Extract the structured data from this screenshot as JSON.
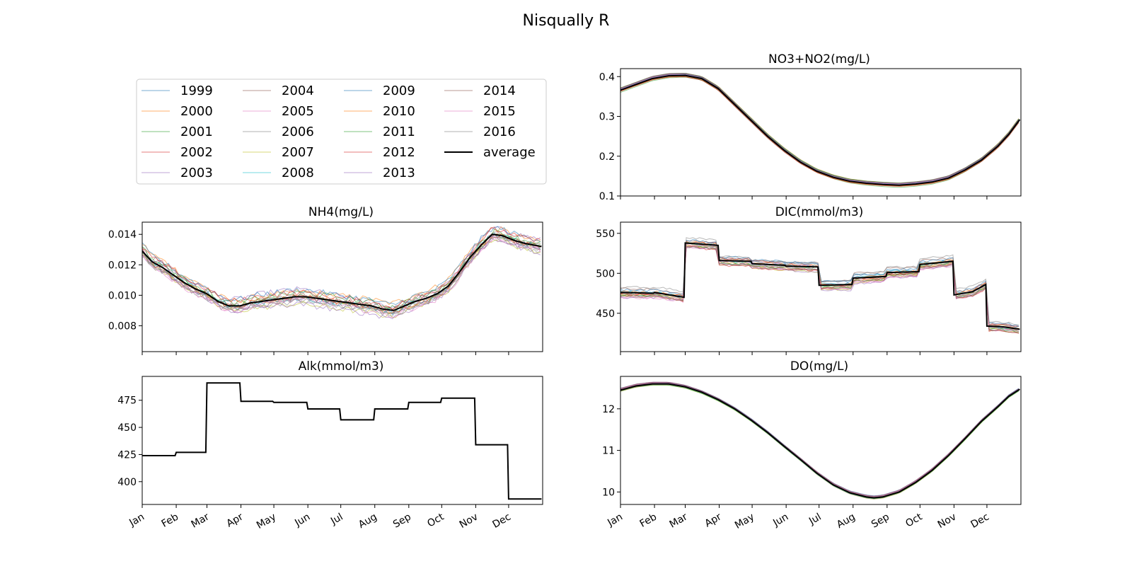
{
  "figure": {
    "title": "Nisqually R"
  },
  "legend": {
    "entries": [
      {
        "label": "1999",
        "color": "#1f77b4"
      },
      {
        "label": "2000",
        "color": "#ff7f0e"
      },
      {
        "label": "2001",
        "color": "#2ca02c"
      },
      {
        "label": "2002",
        "color": "#d62728"
      },
      {
        "label": "2003",
        "color": "#9467bd"
      },
      {
        "label": "2004",
        "color": "#8c564b"
      },
      {
        "label": "2005",
        "color": "#e377c2"
      },
      {
        "label": "2006",
        "color": "#7f7f7f"
      },
      {
        "label": "2007",
        "color": "#bcbd22"
      },
      {
        "label": "2008",
        "color": "#17becf"
      },
      {
        "label": "2009",
        "color": "#1f77b4"
      },
      {
        "label": "2010",
        "color": "#ff7f0e"
      },
      {
        "label": "2011",
        "color": "#2ca02c"
      },
      {
        "label": "2012",
        "color": "#d62728"
      },
      {
        "label": "2013",
        "color": "#9467bd"
      },
      {
        "label": "2014",
        "color": "#8c564b"
      },
      {
        "label": "2015",
        "color": "#e377c2"
      },
      {
        "label": "2016",
        "color": "#7f7f7f"
      },
      {
        "label": "average",
        "color": "#000000"
      }
    ]
  },
  "chart_data": [
    {
      "type": "line",
      "title": "NO3+NO2(mg/L)",
      "xlabel": "",
      "ylabel": "",
      "x_ticklabels": [
        "Jan",
        "Feb",
        "Mar",
        "Apr",
        "May",
        "Jun",
        "Jul",
        "Aug",
        "Sep",
        "Oct",
        "Nov",
        "Dec"
      ],
      "x_ticklabels_shown": false,
      "y_ticks": [
        0.1,
        0.2,
        0.3,
        0.4
      ],
      "y_ticklabels": [
        "0.1",
        "0.2",
        "0.3",
        "0.4"
      ],
      "ylim": [
        0.1,
        0.42
      ],
      "grid": false,
      "average": [
        [
          1,
          0.366
        ],
        [
          15,
          0.38
        ],
        [
          30,
          0.395
        ],
        [
          45,
          0.402
        ],
        [
          60,
          0.403
        ],
        [
          75,
          0.395
        ],
        [
          90,
          0.37
        ],
        [
          105,
          0.33
        ],
        [
          120,
          0.29
        ],
        [
          135,
          0.25
        ],
        [
          150,
          0.215
        ],
        [
          165,
          0.185
        ],
        [
          180,
          0.162
        ],
        [
          195,
          0.147
        ],
        [
          210,
          0.137
        ],
        [
          225,
          0.132
        ],
        [
          240,
          0.129
        ],
        [
          255,
          0.127
        ],
        [
          270,
          0.13
        ],
        [
          285,
          0.135
        ],
        [
          300,
          0.145
        ],
        [
          315,
          0.165
        ],
        [
          330,
          0.19
        ],
        [
          345,
          0.225
        ],
        [
          355,
          0.255
        ],
        [
          365,
          0.292
        ]
      ]
    },
    {
      "type": "line",
      "title": "NH4(mg/L)",
      "xlabel": "",
      "ylabel": "",
      "x_ticklabels": [
        "Jan",
        "Feb",
        "Mar",
        "Apr",
        "May",
        "Jun",
        "Jul",
        "Aug",
        "Sep",
        "Oct",
        "Nov",
        "Dec"
      ],
      "x_ticklabels_shown": false,
      "y_ticks": [
        0.008,
        0.01,
        0.012,
        0.014
      ],
      "y_ticklabels": [
        "0.008",
        "0.010",
        "0.012",
        "0.014"
      ],
      "ylim": [
        0.0063,
        0.0148
      ],
      "grid": false,
      "average": [
        [
          1,
          0.0129
        ],
        [
          10,
          0.0122
        ],
        [
          20,
          0.0118
        ],
        [
          30,
          0.0113
        ],
        [
          40,
          0.0108
        ],
        [
          50,
          0.0104
        ],
        [
          60,
          0.0101
        ],
        [
          70,
          0.0096
        ],
        [
          80,
          0.0093
        ],
        [
          90,
          0.0093
        ],
        [
          100,
          0.0095
        ],
        [
          110,
          0.0096
        ],
        [
          120,
          0.0097
        ],
        [
          130,
          0.0098
        ],
        [
          140,
          0.0099
        ],
        [
          150,
          0.0099
        ],
        [
          160,
          0.0098
        ],
        [
          170,
          0.0097
        ],
        [
          180,
          0.0096
        ],
        [
          190,
          0.0095
        ],
        [
          200,
          0.0094
        ],
        [
          210,
          0.0093
        ],
        [
          220,
          0.0091
        ],
        [
          230,
          0.009
        ],
        [
          240,
          0.0093
        ],
        [
          250,
          0.0096
        ],
        [
          260,
          0.0098
        ],
        [
          270,
          0.0101
        ],
        [
          280,
          0.0106
        ],
        [
          290,
          0.0115
        ],
        [
          300,
          0.0125
        ],
        [
          310,
          0.0133
        ],
        [
          320,
          0.014
        ],
        [
          330,
          0.0139
        ],
        [
          340,
          0.0136
        ],
        [
          350,
          0.0134
        ],
        [
          365,
          0.0132
        ]
      ]
    },
    {
      "type": "line",
      "title": "DIC(mmol/m3)",
      "xlabel": "",
      "ylabel": "",
      "x_ticklabels": [
        "Jan",
        "Feb",
        "Mar",
        "Apr",
        "May",
        "Jun",
        "Jul",
        "Aug",
        "Sep",
        "Oct",
        "Nov",
        "Dec"
      ],
      "x_ticklabels_shown": false,
      "y_ticks": [
        450,
        500,
        550
      ],
      "y_ticklabels": [
        "450",
        "500",
        "550"
      ],
      "ylim": [
        402,
        564
      ],
      "grid": false,
      "average": [
        [
          1,
          476
        ],
        [
          31,
          475
        ],
        [
          32,
          476
        ],
        [
          59,
          470
        ],
        [
          60,
          538
        ],
        [
          90,
          535
        ],
        [
          91,
          516
        ],
        [
          120,
          515
        ],
        [
          121,
          512
        ],
        [
          151,
          510
        ],
        [
          152,
          509
        ],
        [
          181,
          508
        ],
        [
          182,
          485
        ],
        [
          212,
          486
        ],
        [
          213,
          494
        ],
        [
          243,
          496
        ],
        [
          244,
          501
        ],
        [
          273,
          502
        ],
        [
          274,
          511
        ],
        [
          304,
          515
        ],
        [
          305,
          473
        ],
        [
          322,
          477
        ],
        [
          334,
          486
        ],
        [
          335,
          434
        ],
        [
          350,
          433
        ],
        [
          365,
          430
        ]
      ]
    },
    {
      "type": "line",
      "title": "Alk(mmol/m3)",
      "xlabel": "",
      "ylabel": "",
      "x_ticklabels": [
        "Jan",
        "Feb",
        "Mar",
        "Apr",
        "May",
        "Jun",
        "Jul",
        "Aug",
        "Sep",
        "Oct",
        "Nov",
        "Dec"
      ],
      "x_ticklabels_shown": true,
      "y_ticks": [
        400,
        425,
        450,
        475
      ],
      "y_ticklabels": [
        "400",
        "425",
        "450",
        "475"
      ],
      "ylim": [
        379,
        497
      ],
      "grid": false,
      "average": [
        [
          1,
          424
        ],
        [
          31,
          424
        ],
        [
          32,
          427
        ],
        [
          59,
          427
        ],
        [
          60,
          491
        ],
        [
          90,
          491
        ],
        [
          91,
          474
        ],
        [
          120,
          474
        ],
        [
          121,
          473
        ],
        [
          151,
          473
        ],
        [
          152,
          467
        ],
        [
          181,
          467
        ],
        [
          182,
          457
        ],
        [
          212,
          457
        ],
        [
          213,
          467
        ],
        [
          243,
          467
        ],
        [
          244,
          473
        ],
        [
          273,
          473
        ],
        [
          274,
          477
        ],
        [
          304,
          477
        ],
        [
          305,
          434
        ],
        [
          334,
          434
        ],
        [
          335,
          384
        ],
        [
          365,
          384
        ]
      ]
    },
    {
      "type": "line",
      "title": "DO(mg/L)",
      "xlabel": "",
      "ylabel": "",
      "x_ticklabels": [
        "Jan",
        "Feb",
        "Mar",
        "Apr",
        "May",
        "Jun",
        "Jul",
        "Aug",
        "Sep",
        "Oct",
        "Nov",
        "Dec"
      ],
      "x_ticklabels_shown": true,
      "y_ticks": [
        10,
        11,
        12
      ],
      "y_ticklabels": [
        "10",
        "11",
        "12"
      ],
      "ylim": [
        9.7,
        12.78
      ],
      "grid": false,
      "average": [
        [
          1,
          12.45
        ],
        [
          15,
          12.55
        ],
        [
          30,
          12.6
        ],
        [
          45,
          12.6
        ],
        [
          60,
          12.53
        ],
        [
          75,
          12.4
        ],
        [
          90,
          12.22
        ],
        [
          105,
          12.0
        ],
        [
          120,
          11.73
        ],
        [
          135,
          11.43
        ],
        [
          150,
          11.1
        ],
        [
          165,
          10.78
        ],
        [
          180,
          10.45
        ],
        [
          195,
          10.17
        ],
        [
          210,
          9.98
        ],
        [
          225,
          9.88
        ],
        [
          232,
          9.86
        ],
        [
          240,
          9.88
        ],
        [
          255,
          10.0
        ],
        [
          270,
          10.23
        ],
        [
          285,
          10.52
        ],
        [
          300,
          10.88
        ],
        [
          315,
          11.28
        ],
        [
          330,
          11.7
        ],
        [
          345,
          12.05
        ],
        [
          355,
          12.3
        ],
        [
          365,
          12.47
        ]
      ]
    }
  ]
}
